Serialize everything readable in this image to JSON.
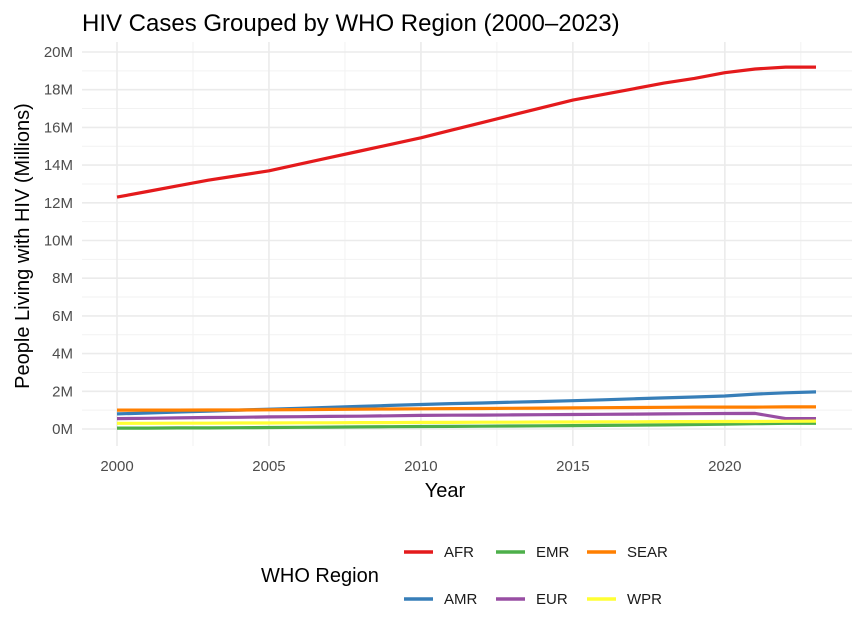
{
  "chart_data": {
    "type": "line",
    "title": "HIV Cases Grouped by WHO Region (2000–2023)",
    "xlabel": "Year",
    "ylabel": "People Living with HIV (Millions)",
    "xlim": [
      2000,
      2023
    ],
    "ylim": [
      0,
      20
    ],
    "x_ticks": [
      {
        "value": 2000,
        "label": "2000"
      },
      {
        "value": 2005,
        "label": "2005"
      },
      {
        "value": 2010,
        "label": "2010"
      },
      {
        "value": 2015,
        "label": "2015"
      },
      {
        "value": 2020,
        "label": "2020"
      }
    ],
    "y_ticks": [
      {
        "value": 0,
        "label": "0M"
      },
      {
        "value": 2,
        "label": "2M"
      },
      {
        "value": 4,
        "label": "4M"
      },
      {
        "value": 6,
        "label": "6M"
      },
      {
        "value": 8,
        "label": "8M"
      },
      {
        "value": 10,
        "label": "10M"
      },
      {
        "value": 12,
        "label": "12M"
      },
      {
        "value": 14,
        "label": "14M"
      },
      {
        "value": 16,
        "label": "16M"
      },
      {
        "value": 18,
        "label": "18M"
      },
      {
        "value": 20,
        "label": "20M"
      }
    ],
    "grid": true,
    "legend_title": "WHO Region",
    "legend_position": "bottom",
    "x": [
      2000,
      2001,
      2002,
      2003,
      2004,
      2005,
      2006,
      2007,
      2008,
      2009,
      2010,
      2011,
      2012,
      2013,
      2014,
      2015,
      2016,
      2017,
      2018,
      2019,
      2020,
      2021,
      2022,
      2023
    ],
    "series": [
      {
        "name": "AFR",
        "color": "#e41a1c",
        "values": [
          12.3,
          12.6,
          12.9,
          13.2,
          13.45,
          13.7,
          14.05,
          14.4,
          14.75,
          15.1,
          15.45,
          15.85,
          16.25,
          16.65,
          17.05,
          17.45,
          17.75,
          18.05,
          18.35,
          18.6,
          18.9,
          19.1,
          19.2,
          19.2
        ]
      },
      {
        "name": "AMR",
        "color": "#377eb8",
        "values": [
          0.8,
          0.85,
          0.9,
          0.95,
          1.0,
          1.05,
          1.1,
          1.15,
          1.2,
          1.25,
          1.3,
          1.35,
          1.38,
          1.42,
          1.46,
          1.5,
          1.55,
          1.6,
          1.65,
          1.7,
          1.75,
          1.85,
          1.92,
          1.97
        ]
      },
      {
        "name": "EMR",
        "color": "#4daf4a",
        "values": [
          0.05,
          0.05,
          0.06,
          0.06,
          0.07,
          0.08,
          0.09,
          0.1,
          0.11,
          0.12,
          0.13,
          0.14,
          0.15,
          0.16,
          0.17,
          0.18,
          0.19,
          0.2,
          0.22,
          0.24,
          0.26,
          0.28,
          0.3,
          0.3
        ]
      },
      {
        "name": "EUR",
        "color": "#984ea3",
        "values": [
          0.55,
          0.57,
          0.59,
          0.61,
          0.62,
          0.64,
          0.65,
          0.67,
          0.68,
          0.7,
          0.72,
          0.73,
          0.74,
          0.75,
          0.76,
          0.77,
          0.78,
          0.79,
          0.8,
          0.81,
          0.82,
          0.83,
          0.55,
          0.55
        ]
      },
      {
        "name": "SEAR",
        "color": "#ff7f00",
        "values": [
          1.0,
          1.0,
          1.0,
          1.01,
          1.01,
          1.02,
          1.03,
          1.04,
          1.05,
          1.06,
          1.07,
          1.08,
          1.09,
          1.1,
          1.11,
          1.12,
          1.13,
          1.14,
          1.15,
          1.16,
          1.16,
          1.16,
          1.17,
          1.17
        ]
      },
      {
        "name": "WPR",
        "color": "#ffff33",
        "values": [
          0.3,
          0.3,
          0.31,
          0.31,
          0.32,
          0.32,
          0.33,
          0.33,
          0.34,
          0.34,
          0.35,
          0.35,
          0.36,
          0.36,
          0.37,
          0.37,
          0.38,
          0.38,
          0.39,
          0.39,
          0.4,
          0.4,
          0.41,
          0.42
        ]
      }
    ],
    "legend_order": [
      "AFR",
      "EMR",
      "SEAR",
      "AMR",
      "EUR",
      "WPR"
    ]
  }
}
